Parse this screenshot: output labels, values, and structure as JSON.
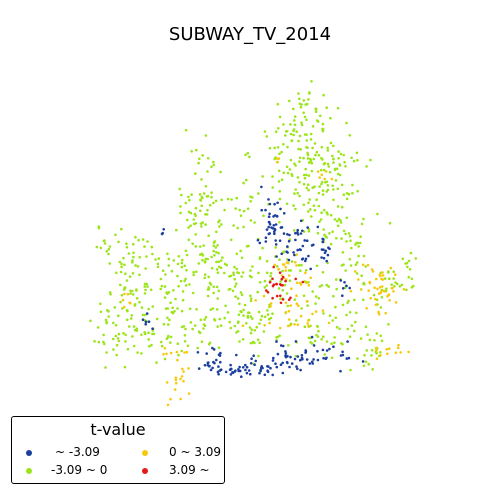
{
  "title": "SUBWAY_TV_2014",
  "legend": {
    "title": "t-value",
    "items": [
      {
        "label": "~ -3.09",
        "color": "#1b3f9e"
      },
      {
        "label": "-3.09 ~ 0",
        "color": "#9be51a"
      },
      {
        "label": "0 ~ 3.09",
        "color": "#f6c90f"
      },
      {
        "label": "3.09 ~",
        "color": "#e51919"
      }
    ]
  }
}
